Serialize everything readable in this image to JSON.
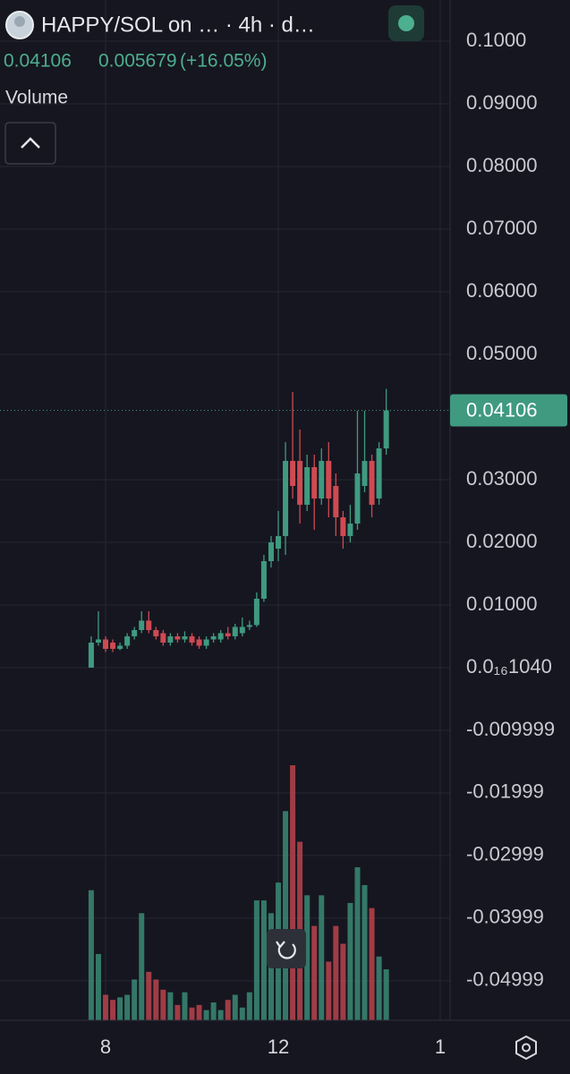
{
  "header": {
    "title": "HAPPY/SOL on … · 4h · d…",
    "change": 0.005679,
    "change_pct": "(+16.05%)",
    "indicator": "Volume"
  },
  "chart_data": {
    "type": "candlestick",
    "x": [
      -8,
      -4,
      0,
      4,
      8,
      12,
      16,
      20,
      24,
      28,
      32,
      36,
      40,
      44,
      48,
      52,
      56,
      60,
      64,
      68,
      72,
      76,
      80,
      84,
      88,
      92,
      96,
      100,
      104,
      108,
      112,
      116,
      120,
      124,
      128,
      132,
      136,
      140,
      144,
      148,
      152,
      156
    ],
    "open": [
      0,
      0.004,
      0.0045,
      0.004,
      0.003,
      0.0035,
      0.005,
      0.006,
      0.0075,
      0.006,
      0.0055,
      0.004,
      0.005,
      0.0045,
      0.005,
      0.0045,
      0.0035,
      0.0045,
      0.0045,
      0.0055,
      0.005,
      0.0055,
      0.0065,
      0.0068,
      0.011,
      0.017,
      0.019,
      0.021,
      0.033,
      0.033,
      0.026,
      0.032,
      0.027,
      0.033,
      0.029,
      0.024,
      0.021,
      0.023,
      0.029,
      0.033,
      0.027,
      0.035
    ],
    "high": [
      0.005,
      0.009,
      0.005,
      0.0045,
      0.004,
      0.0055,
      0.0065,
      0.009,
      0.009,
      0.0065,
      0.006,
      0.0055,
      0.0055,
      0.0058,
      0.0055,
      0.005,
      0.005,
      0.0055,
      0.006,
      0.0065,
      0.007,
      0.008,
      0.0075,
      0.012,
      0.018,
      0.021,
      0.025,
      0.036,
      0.044,
      0.038,
      0.034,
      0.034,
      0.035,
      0.036,
      0.031,
      0.025,
      0.026,
      0.041,
      0.041,
      0.034,
      0.036,
      0.0445
    ],
    "low": [
      0,
      0.0035,
      0.0025,
      0.0025,
      0.0028,
      0.003,
      0.0045,
      0.0055,
      0.0055,
      0.0045,
      0.0035,
      0.0035,
      0.004,
      0.004,
      0.0035,
      0.003,
      0.003,
      0.004,
      0.004,
      0.0045,
      0.0045,
      0.005,
      0.006,
      0.0065,
      0.0105,
      0.016,
      0.017,
      0.018,
      0.027,
      0.023,
      0.025,
      0.022,
      0.026,
      0.024,
      0.021,
      0.019,
      0.02,
      0.022,
      0.028,
      0.024,
      0.026,
      0.034
    ],
    "close": [
      0.004,
      0.0045,
      0.003,
      0.003,
      0.0035,
      0.005,
      0.006,
      0.0075,
      0.006,
      0.005,
      0.004,
      0.005,
      0.0045,
      0.005,
      0.004,
      0.0035,
      0.0045,
      0.005,
      0.0055,
      0.005,
      0.0065,
      0.0065,
      0.0068,
      0.011,
      0.017,
      0.02,
      0.021,
      0.033,
      0.029,
      0.026,
      0.032,
      0.027,
      0.033,
      0.027,
      0.024,
      0.021,
      0.023,
      0.031,
      0.033,
      0.026,
      0.035,
      0.04106
    ],
    "volume": [
      51,
      26,
      10,
      8,
      9,
      10,
      16,
      42,
      19,
      16,
      12,
      11,
      6,
      11,
      5,
      6,
      4,
      7,
      4,
      8,
      10,
      5,
      11,
      47,
      47,
      42,
      54,
      82,
      100,
      70,
      49,
      37,
      49,
      23,
      37,
      30,
      46,
      60,
      53,
      44,
      25,
      20
    ],
    "up_color": "#3f9a80",
    "down_color": "#cf4a52",
    "xlim": [
      -58.7,
      191.5
    ],
    "xticks": [
      {
        "value": 0,
        "label": "8"
      },
      {
        "value": 96,
        "label": "12"
      },
      {
        "value": 186,
        "label": "1"
      }
    ],
    "ylim": [
      -0.05629,
      0.10657
    ],
    "yticks": [
      {
        "value": 0.1,
        "label": "0.1000"
      },
      {
        "value": 0.09,
        "label": "0.09000"
      },
      {
        "value": 0.08,
        "label": "0.08000"
      },
      {
        "value": 0.07,
        "label": "0.07000"
      },
      {
        "value": 0.06,
        "label": "0.06000"
      },
      {
        "value": 0.05,
        "label": "0.05000"
      },
      {
        "value": 0.03,
        "label": "0.03000"
      },
      {
        "value": 0.02,
        "label": "0.02000"
      },
      {
        "value": 0.01,
        "label": "0.01000"
      },
      {
        "value": 1.04e-17,
        "label": "0.0₁₆1040"
      },
      -0.009999,
      -0.01999,
      -0.02999,
      -0.03999,
      -0.04999
    ],
    "grid": true
  }
}
